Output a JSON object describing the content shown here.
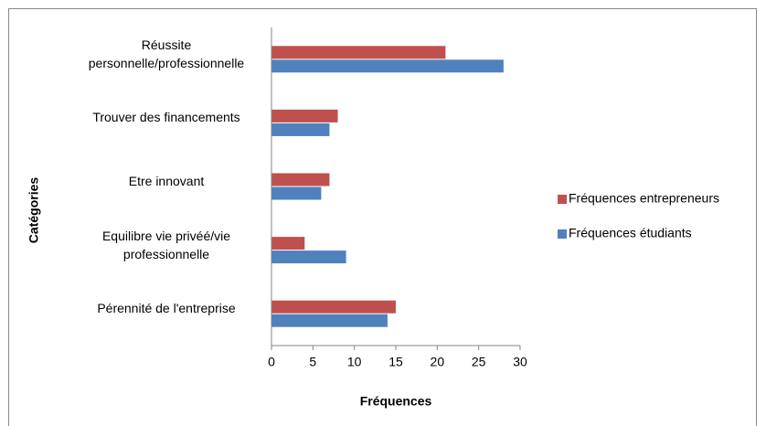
{
  "chart_data": {
    "type": "hbar",
    "categories": [
      "Réussite personnelle/professionnelle",
      "Trouver des financements",
      "Etre innovant",
      "Equilibre vie privéé/vie professionnelle",
      "Pérennité de l'entreprise"
    ],
    "series": [
      {
        "name": "Fréquences entrepreneurs",
        "color": "#c0504d",
        "values": [
          21,
          8,
          7,
          4,
          15
        ]
      },
      {
        "name": "Fréquences étudiants",
        "color": "#4f81bd",
        "values": [
          28,
          7,
          6,
          9,
          14
        ]
      }
    ],
    "xlabel": "Fréquences",
    "ylabel": "Catégories",
    "xlim": [
      0,
      30
    ],
    "xticks": [
      0,
      5,
      10,
      15,
      20,
      25,
      30
    ],
    "grid": false,
    "legend": "right"
  }
}
